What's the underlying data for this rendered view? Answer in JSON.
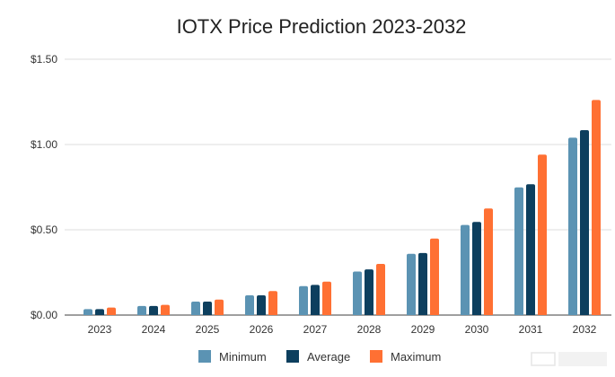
{
  "chart_data": {
    "type": "bar",
    "title": "IOTX Price Prediction 2023-2032",
    "xlabel": "",
    "ylabel": "",
    "ylim": [
      0,
      1.5
    ],
    "yticks": [
      "$0.00",
      "$0.50",
      "$1.00",
      "$1.50"
    ],
    "ytick_values": [
      0,
      0.5,
      1.0,
      1.5
    ],
    "grid": true,
    "legend": "bottom",
    "categories": [
      "2023",
      "2024",
      "2025",
      "2026",
      "2027",
      "2028",
      "2029",
      "2030",
      "2031",
      "2032"
    ],
    "series": [
      {
        "name": "Minimum",
        "color": "#5b93b3",
        "values": [
          0.035,
          0.053,
          0.079,
          0.116,
          0.17,
          0.255,
          0.359,
          0.528,
          0.749,
          1.04
        ]
      },
      {
        "name": "Average",
        "color": "#0d3f5e",
        "values": [
          0.035,
          0.053,
          0.079,
          0.116,
          0.177,
          0.268,
          0.364,
          0.546,
          0.767,
          1.084
        ]
      },
      {
        "name": "Maximum",
        "color": "#ff7033",
        "values": [
          0.044,
          0.06,
          0.091,
          0.141,
          0.196,
          0.3,
          0.449,
          0.625,
          0.941,
          1.261
        ]
      }
    ]
  }
}
